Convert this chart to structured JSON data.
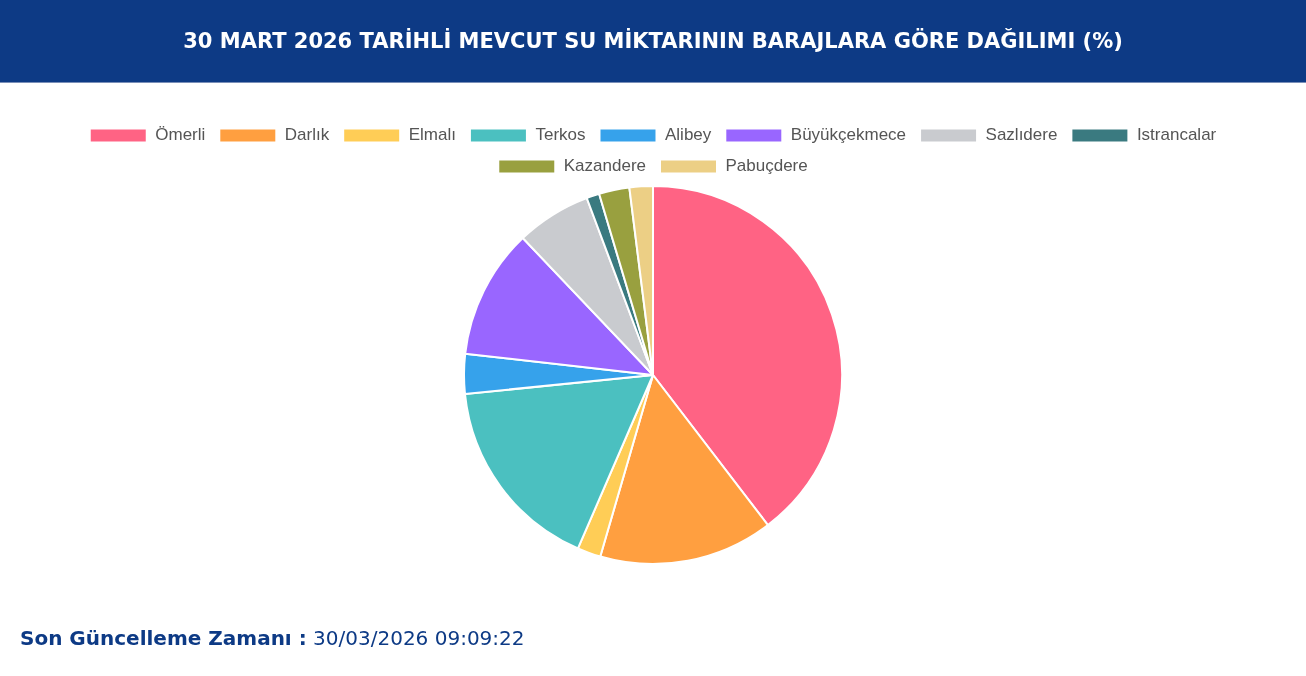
{
  "chart_data": {
    "type": "pie",
    "title": "30 MART 2026 TARİHLİ MEVCUT SU MİKTARININ BARAJLARA GÖRE DAĞILIMI (%)",
    "categories": [
      "Ömerli",
      "Darlık",
      "Elmalı",
      "Terkos",
      "Alibey",
      "Büyükçekmece",
      "Sazlıdere",
      "Istrancalar",
      "Kazandere",
      "Pabuçdere"
    ],
    "values": [
      39.6,
      14.9,
      2.0,
      16.9,
      3.4,
      11.1,
      6.4,
      1.1,
      2.6,
      2.0
    ],
    "colors": [
      "#ff6384",
      "#ff9f40",
      "#ffcd56",
      "#4bc0c0",
      "#36a2eb",
      "#9966ff",
      "#c9cbcf",
      "#3a7a80",
      "#99a03f",
      "#eccf85"
    ],
    "legend": "top",
    "annotations": [
      "Son Güncelleme Zamanı : 30/03/2026 09:09:22"
    ]
  }
}
